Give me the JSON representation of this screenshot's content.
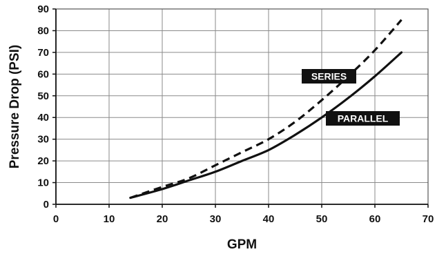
{
  "chart_data": {
    "type": "line",
    "xlabel": "GPM",
    "ylabel": "Pressure Drop (PSI)",
    "xlim": [
      0,
      70
    ],
    "ylim": [
      0,
      90
    ],
    "x_ticks": [
      0,
      10,
      20,
      30,
      40,
      50,
      60,
      70
    ],
    "y_ticks": [
      0,
      10,
      20,
      30,
      40,
      50,
      60,
      70,
      80,
      90
    ],
    "grid": true,
    "legend": "none",
    "annotations": [
      {
        "text": "SERIES",
        "series": "series"
      },
      {
        "text": "PARALLEL",
        "series": "parallel"
      }
    ],
    "series": [
      {
        "key": "series",
        "name": "SERIES",
        "style": "dashed",
        "color": "#111111",
        "points": [
          [
            14,
            3
          ],
          [
            20,
            8
          ],
          [
            25,
            12
          ],
          [
            30,
            18
          ],
          [
            35,
            24
          ],
          [
            40,
            30
          ],
          [
            45,
            38
          ],
          [
            50,
            48
          ],
          [
            55,
            59
          ],
          [
            60,
            71
          ],
          [
            65,
            85
          ]
        ]
      },
      {
        "key": "parallel",
        "name": "PARALLEL",
        "style": "solid",
        "color": "#111111",
        "points": [
          [
            14,
            3
          ],
          [
            20,
            7
          ],
          [
            25,
            11
          ],
          [
            30,
            15
          ],
          [
            35,
            20
          ],
          [
            40,
            25
          ],
          [
            45,
            32
          ],
          [
            50,
            40
          ],
          [
            55,
            49
          ],
          [
            60,
            59
          ],
          [
            65,
            70
          ]
        ]
      }
    ]
  }
}
